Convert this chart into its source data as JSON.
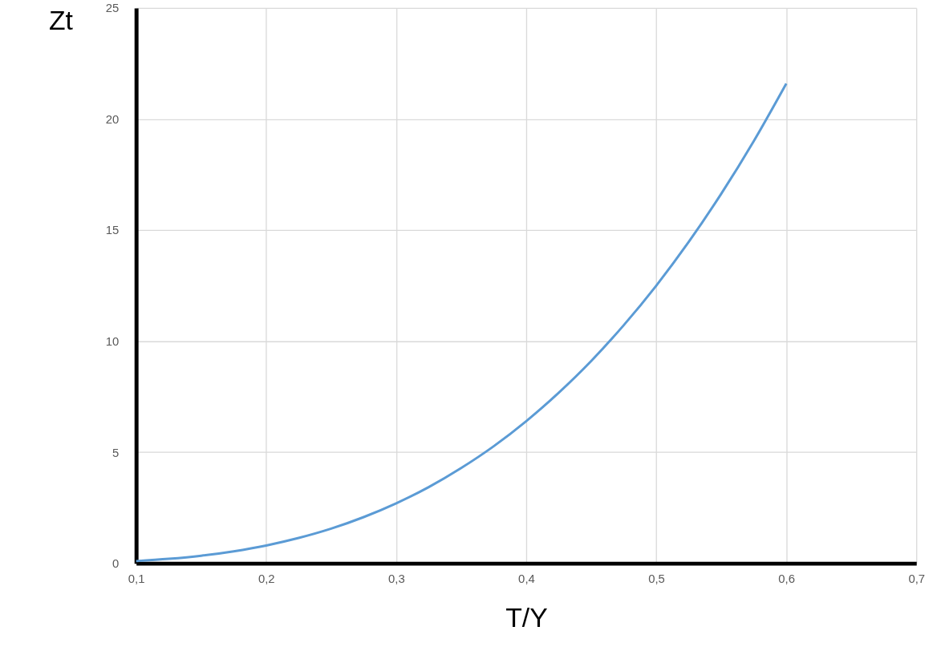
{
  "chart_data": {
    "type": "line",
    "xlabel": "T/Y",
    "ylabel": "Zt",
    "series": [
      {
        "color": "#5b9bd5",
        "x": [
          0.1,
          0.125,
          0.15,
          0.175,
          0.2,
          0.225,
          0.25,
          0.275,
          0.3,
          0.325,
          0.35,
          0.375,
          0.4,
          0.425,
          0.45,
          0.475,
          0.5,
          0.525,
          0.55,
          0.575,
          0.6
        ],
        "values": [
          0.1,
          0.2,
          0.34,
          0.54,
          0.8,
          1.14,
          1.56,
          2.08,
          2.7,
          3.43,
          4.29,
          5.27,
          6.4,
          7.68,
          9.11,
          10.72,
          12.5,
          14.47,
          16.64,
          19.01,
          21.6
        ]
      }
    ],
    "xlim": [
      0.1,
      0.7
    ],
    "xticks": [
      {
        "value": 0.1,
        "label": "0,1"
      },
      {
        "value": 0.2,
        "label": "0,2"
      },
      {
        "value": 0.3,
        "label": "0,3"
      },
      {
        "value": 0.4,
        "label": "0,4"
      },
      {
        "value": 0.5,
        "label": "0,5"
      },
      {
        "value": 0.6,
        "label": "0,6"
      },
      {
        "value": 0.7,
        "label": "0,7"
      }
    ],
    "ylim": [
      0,
      25
    ],
    "yticks": [
      0,
      5,
      10,
      15,
      20,
      25
    ],
    "grid": true,
    "marker": "none",
    "line_style": "solid"
  }
}
